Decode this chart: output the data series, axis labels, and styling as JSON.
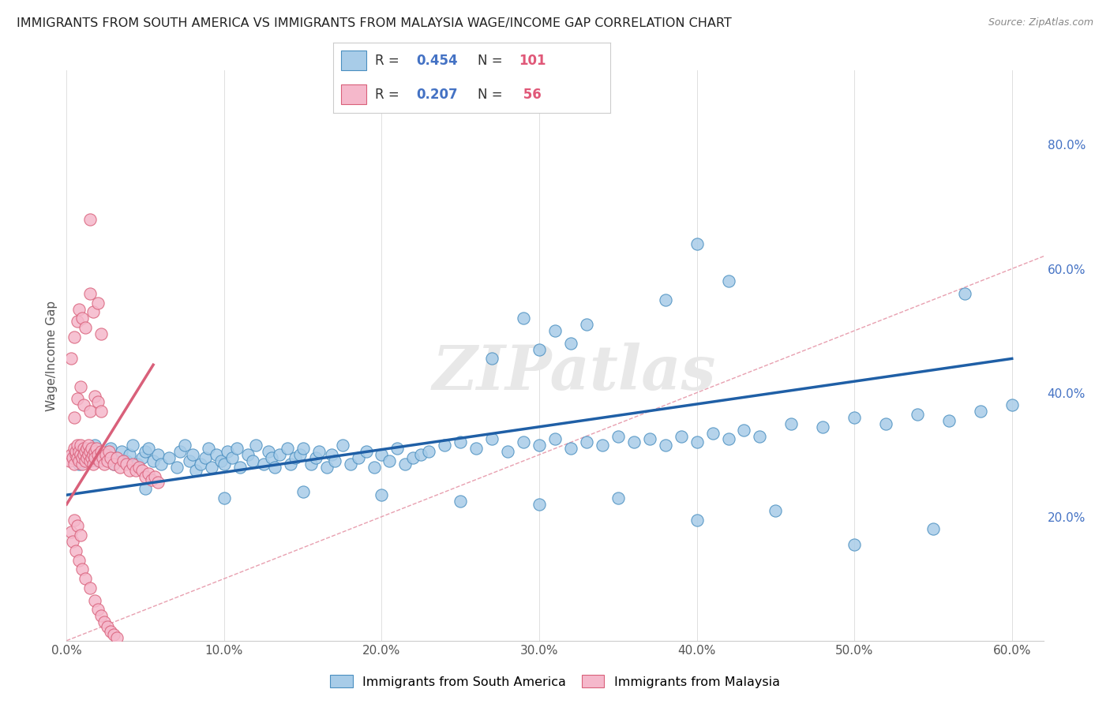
{
  "title": "IMMIGRANTS FROM SOUTH AMERICA VS IMMIGRANTS FROM MALAYSIA WAGE/INCOME GAP CORRELATION CHART",
  "source": "Source: ZipAtlas.com",
  "ylabel": "Wage/Income Gap",
  "xlim": [
    0.0,
    0.62
  ],
  "ylim": [
    0.0,
    0.92
  ],
  "x_tick_values": [
    0.0,
    0.1,
    0.2,
    0.3,
    0.4,
    0.5,
    0.6
  ],
  "y_tick_values_right": [
    0.2,
    0.4,
    0.6,
    0.8
  ],
  "blue_color": "#a8cce8",
  "pink_color": "#f5b8cb",
  "blue_edge_color": "#4a8fc0",
  "pink_edge_color": "#d9607a",
  "blue_line_color": "#1f5fa6",
  "pink_line_color": "#d9607a",
  "blue_R": 0.454,
  "blue_N": 101,
  "pink_R": 0.207,
  "pink_N": 56,
  "watermark": "ZIPatlas",
  "legend_blue_label": "Immigrants from South America",
  "legend_pink_label": "Immigrants from Malaysia",
  "blue_line_x0": 0.0,
  "blue_line_y0": 0.235,
  "blue_line_x1": 0.6,
  "blue_line_y1": 0.455,
  "pink_line_x0": 0.0,
  "pink_line_y0": 0.22,
  "pink_line_x1": 0.055,
  "pink_line_y1": 0.445,
  "diag_color": "#e8b4c0",
  "background_color": "#ffffff",
  "grid_color": "#e0e0e0",
  "blue_scatter_x": [
    0.005,
    0.008,
    0.01,
    0.012,
    0.015,
    0.018,
    0.02,
    0.022,
    0.025,
    0.028,
    0.03,
    0.032,
    0.035,
    0.038,
    0.04,
    0.042,
    0.045,
    0.048,
    0.05,
    0.052,
    0.055,
    0.058,
    0.06,
    0.065,
    0.07,
    0.072,
    0.075,
    0.078,
    0.08,
    0.082,
    0.085,
    0.088,
    0.09,
    0.092,
    0.095,
    0.098,
    0.1,
    0.102,
    0.105,
    0.108,
    0.11,
    0.115,
    0.118,
    0.12,
    0.125,
    0.128,
    0.13,
    0.132,
    0.135,
    0.14,
    0.142,
    0.145,
    0.148,
    0.15,
    0.155,
    0.158,
    0.16,
    0.165,
    0.168,
    0.17,
    0.175,
    0.18,
    0.185,
    0.19,
    0.195,
    0.2,
    0.205,
    0.21,
    0.215,
    0.22,
    0.225,
    0.23,
    0.24,
    0.25,
    0.26,
    0.27,
    0.28,
    0.29,
    0.3,
    0.31,
    0.32,
    0.33,
    0.34,
    0.35,
    0.36,
    0.37,
    0.38,
    0.39,
    0.4,
    0.41,
    0.42,
    0.43,
    0.44,
    0.46,
    0.48,
    0.5,
    0.52,
    0.54,
    0.56,
    0.58,
    0.6
  ],
  "blue_scatter_y": [
    0.3,
    0.285,
    0.31,
    0.295,
    0.305,
    0.315,
    0.29,
    0.3,
    0.295,
    0.31,
    0.285,
    0.295,
    0.305,
    0.29,
    0.3,
    0.315,
    0.285,
    0.295,
    0.305,
    0.31,
    0.29,
    0.3,
    0.285,
    0.295,
    0.28,
    0.305,
    0.315,
    0.29,
    0.3,
    0.275,
    0.285,
    0.295,
    0.31,
    0.28,
    0.3,
    0.29,
    0.285,
    0.305,
    0.295,
    0.31,
    0.28,
    0.3,
    0.29,
    0.315,
    0.285,
    0.305,
    0.295,
    0.28,
    0.3,
    0.31,
    0.285,
    0.295,
    0.3,
    0.31,
    0.285,
    0.295,
    0.305,
    0.28,
    0.3,
    0.29,
    0.315,
    0.285,
    0.295,
    0.305,
    0.28,
    0.3,
    0.29,
    0.31,
    0.285,
    0.295,
    0.3,
    0.305,
    0.315,
    0.32,
    0.31,
    0.325,
    0.305,
    0.32,
    0.315,
    0.325,
    0.31,
    0.32,
    0.315,
    0.33,
    0.32,
    0.325,
    0.315,
    0.33,
    0.32,
    0.335,
    0.325,
    0.34,
    0.33,
    0.35,
    0.345,
    0.36,
    0.35,
    0.365,
    0.355,
    0.37,
    0.38
  ],
  "blue_scatter_y_outliers_x": [
    0.27,
    0.29,
    0.3,
    0.31,
    0.32,
    0.33,
    0.38,
    0.4,
    0.42,
    0.57
  ],
  "blue_scatter_y_outliers_y": [
    0.455,
    0.52,
    0.47,
    0.5,
    0.48,
    0.51,
    0.55,
    0.64,
    0.58,
    0.56
  ],
  "blue_scatter_low_x": [
    0.05,
    0.1,
    0.15,
    0.2,
    0.25,
    0.3,
    0.35,
    0.4,
    0.45,
    0.5,
    0.55
  ],
  "blue_scatter_low_y": [
    0.245,
    0.23,
    0.24,
    0.235,
    0.225,
    0.22,
    0.23,
    0.195,
    0.21,
    0.155,
    0.18
  ],
  "pink_scatter_x": [
    0.002,
    0.003,
    0.004,
    0.005,
    0.005,
    0.006,
    0.006,
    0.007,
    0.007,
    0.008,
    0.008,
    0.009,
    0.009,
    0.01,
    0.01,
    0.011,
    0.011,
    0.012,
    0.012,
    0.013,
    0.013,
    0.014,
    0.014,
    0.015,
    0.015,
    0.016,
    0.016,
    0.017,
    0.017,
    0.018,
    0.018,
    0.019,
    0.02,
    0.021,
    0.022,
    0.023,
    0.024,
    0.025,
    0.026,
    0.027,
    0.028,
    0.03,
    0.032,
    0.034,
    0.036,
    0.038,
    0.04,
    0.042,
    0.044,
    0.046,
    0.048,
    0.05,
    0.052,
    0.054,
    0.056,
    0.058
  ],
  "pink_scatter_y": [
    0.29,
    0.3,
    0.295,
    0.31,
    0.285,
    0.3,
    0.305,
    0.295,
    0.315,
    0.29,
    0.305,
    0.3,
    0.315,
    0.285,
    0.295,
    0.31,
    0.3,
    0.29,
    0.305,
    0.295,
    0.31,
    0.3,
    0.315,
    0.29,
    0.305,
    0.295,
    0.31,
    0.3,
    0.285,
    0.305,
    0.295,
    0.31,
    0.3,
    0.29,
    0.305,
    0.295,
    0.285,
    0.3,
    0.29,
    0.305,
    0.295,
    0.285,
    0.295,
    0.28,
    0.29,
    0.285,
    0.275,
    0.285,
    0.275,
    0.28,
    0.275,
    0.265,
    0.27,
    0.26,
    0.265,
    0.255
  ],
  "pink_scatter_outliers_x": [
    0.003,
    0.005,
    0.007,
    0.008,
    0.01,
    0.012,
    0.015,
    0.017,
    0.02,
    0.022,
    0.005,
    0.007,
    0.009,
    0.011,
    0.015,
    0.018,
    0.02,
    0.022
  ],
  "pink_scatter_outliers_y": [
    0.455,
    0.49,
    0.515,
    0.535,
    0.52,
    0.505,
    0.56,
    0.53,
    0.545,
    0.495,
    0.36,
    0.39,
    0.41,
    0.38,
    0.37,
    0.395,
    0.385,
    0.37
  ],
  "pink_scatter_low_x": [
    0.003,
    0.004,
    0.006,
    0.008,
    0.01,
    0.012,
    0.015,
    0.018,
    0.02,
    0.022,
    0.024,
    0.026,
    0.028,
    0.03,
    0.032,
    0.005,
    0.007,
    0.009
  ],
  "pink_scatter_low_y": [
    0.175,
    0.16,
    0.145,
    0.13,
    0.115,
    0.1,
    0.085,
    0.065,
    0.05,
    0.04,
    0.03,
    0.022,
    0.015,
    0.01,
    0.005,
    0.195,
    0.185,
    0.17
  ],
  "pink_outlier_high_x": [
    0.015
  ],
  "pink_outlier_high_y": [
    0.68
  ]
}
